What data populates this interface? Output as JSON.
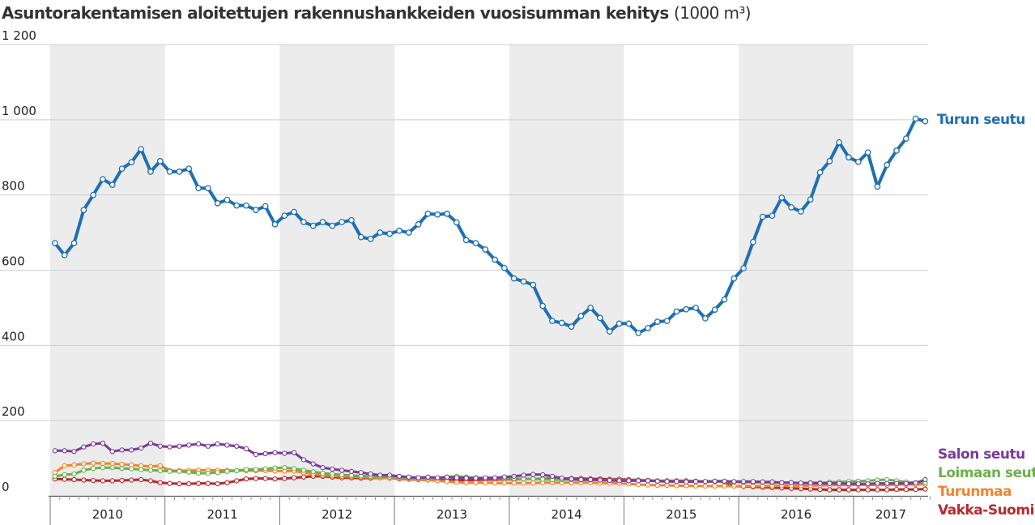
{
  "chart_data": {
    "type": "line",
    "title": "Asuntorakentamisen aloitettujen rakennushankkeiden vuosisumman kehitys",
    "unit": "(1000 m³)",
    "ylim": [
      0,
      1200
    ],
    "yticks": [
      0,
      200,
      400,
      600,
      800,
      1000,
      1200
    ],
    "ytick_labels": [
      "0",
      "200",
      "400",
      "600",
      "800",
      "1 000",
      "1 200"
    ],
    "x_start_year": 2010,
    "points_per_year": 12,
    "years": [
      "2010",
      "2011",
      "2012",
      "2013",
      "2014",
      "2015",
      "2016",
      "2017"
    ],
    "shaded_years": [
      "2010",
      "2012",
      "2014",
      "2016"
    ],
    "grid": true,
    "series": [
      {
        "name": "Turun seutu",
        "color": "#1f6fb3",
        "values": [
          672,
          640,
          672,
          760,
          800,
          842,
          827,
          870,
          887,
          922,
          862,
          890,
          862,
          862,
          870,
          818,
          818,
          778,
          787,
          772,
          772,
          760,
          770,
          722,
          745,
          755,
          728,
          718,
          728,
          718,
          728,
          733,
          688,
          683,
          700,
          697,
          705,
          700,
          722,
          750,
          748,
          750,
          727,
          680,
          672,
          655,
          628,
          606,
          578,
          570,
          561,
          505,
          465,
          460,
          450,
          478,
          500,
          473,
          437,
          458,
          458,
          433,
          446,
          463,
          465,
          490,
          496,
          500,
          472,
          495,
          522,
          578,
          605,
          675,
          742,
          745,
          793,
          767,
          756,
          788,
          860,
          890,
          940,
          900,
          888,
          913,
          822,
          880,
          918,
          950,
          1003,
          996
        ]
      },
      {
        "name": "Salon seutu",
        "color": "#7a3a9c",
        "values": [
          120,
          120,
          118,
          130,
          138,
          140,
          118,
          122,
          122,
          127,
          140,
          132,
          130,
          132,
          135,
          138,
          132,
          138,
          135,
          132,
          125,
          110,
          112,
          115,
          113,
          115,
          96,
          85,
          75,
          71,
          68,
          65,
          62,
          58,
          55,
          55,
          52,
          50,
          48,
          50,
          48,
          50,
          48,
          47,
          47,
          48,
          48,
          50,
          52,
          55,
          57,
          56,
          52,
          47,
          45,
          43,
          43,
          42,
          41,
          40,
          40,
          40,
          40,
          39,
          38,
          38,
          37,
          38,
          38,
          39,
          39,
          38,
          38,
          38,
          37,
          37,
          35,
          35,
          34,
          34,
          33,
          33,
          33,
          32,
          32,
          32,
          33,
          33,
          33,
          33,
          34,
          43
        ]
      },
      {
        "name": "Loimaan seutu",
        "color": "#6ab04c",
        "values": [
          52,
          56,
          58,
          68,
          73,
          75,
          75,
          73,
          72,
          70,
          68,
          67,
          65,
          65,
          63,
          60,
          60,
          62,
          65,
          67,
          70,
          70,
          72,
          74,
          75,
          72,
          68,
          64,
          60,
          58,
          56,
          54,
          53,
          52,
          51,
          50,
          49,
          48,
          48,
          47,
          47,
          50,
          52,
          50,
          48,
          47,
          47,
          46,
          46,
          45,
          45,
          44,
          43,
          43,
          43,
          42,
          42,
          42,
          42,
          41,
          41,
          41,
          40,
          40,
          39,
          39,
          39,
          38,
          38,
          38,
          37,
          37,
          36,
          36,
          36,
          35,
          35,
          35,
          34,
          35,
          35,
          36,
          37,
          38,
          39,
          40,
          42,
          43,
          40,
          37,
          35,
          35
        ]
      },
      {
        "name": "Turunmaa",
        "color": "#f0842c",
        "values": [
          62,
          80,
          82,
          85,
          87,
          86,
          86,
          84,
          82,
          80,
          78,
          80,
          67,
          67,
          67,
          68,
          68,
          68,
          68,
          67,
          67,
          67,
          67,
          66,
          66,
          66,
          62,
          58,
          55,
          53,
          52,
          51,
          50,
          49,
          48,
          47,
          46,
          45,
          44,
          42,
          40,
          38,
          36,
          35,
          35,
          35,
          34,
          34,
          34,
          34,
          34,
          35,
          35,
          35,
          35,
          35,
          35,
          34,
          34,
          33,
          32,
          30,
          29,
          28,
          28,
          27,
          27,
          26,
          26,
          26,
          26,
          26,
          26,
          26,
          26,
          26,
          27,
          27,
          27,
          27,
          28,
          28,
          29,
          29,
          29,
          29,
          29,
          29,
          30,
          30,
          30,
          31
        ]
      },
      {
        "name": "Vakka-Suomi",
        "color": "#b52a2f",
        "values": [
          45,
          44,
          43,
          42,
          41,
          40,
          40,
          41,
          42,
          43,
          40,
          35,
          33,
          32,
          32,
          33,
          33,
          32,
          35,
          40,
          45,
          46,
          46,
          45,
          46,
          48,
          50,
          52,
          52,
          50,
          48,
          48,
          47,
          47,
          48,
          47,
          45,
          44,
          43,
          42,
          42,
          42,
          42,
          42,
          42,
          43,
          43,
          44,
          44,
          45,
          45,
          45,
          46,
          46,
          46,
          46,
          45,
          45,
          44,
          44,
          43,
          42,
          41,
          40,
          40,
          40,
          40,
          39,
          38,
          38,
          37,
          26,
          25,
          24,
          23,
          22,
          21,
          20,
          19,
          18,
          17,
          16,
          16,
          16,
          16,
          16,
          16,
          16,
          17,
          17,
          17,
          18
        ]
      }
    ]
  }
}
